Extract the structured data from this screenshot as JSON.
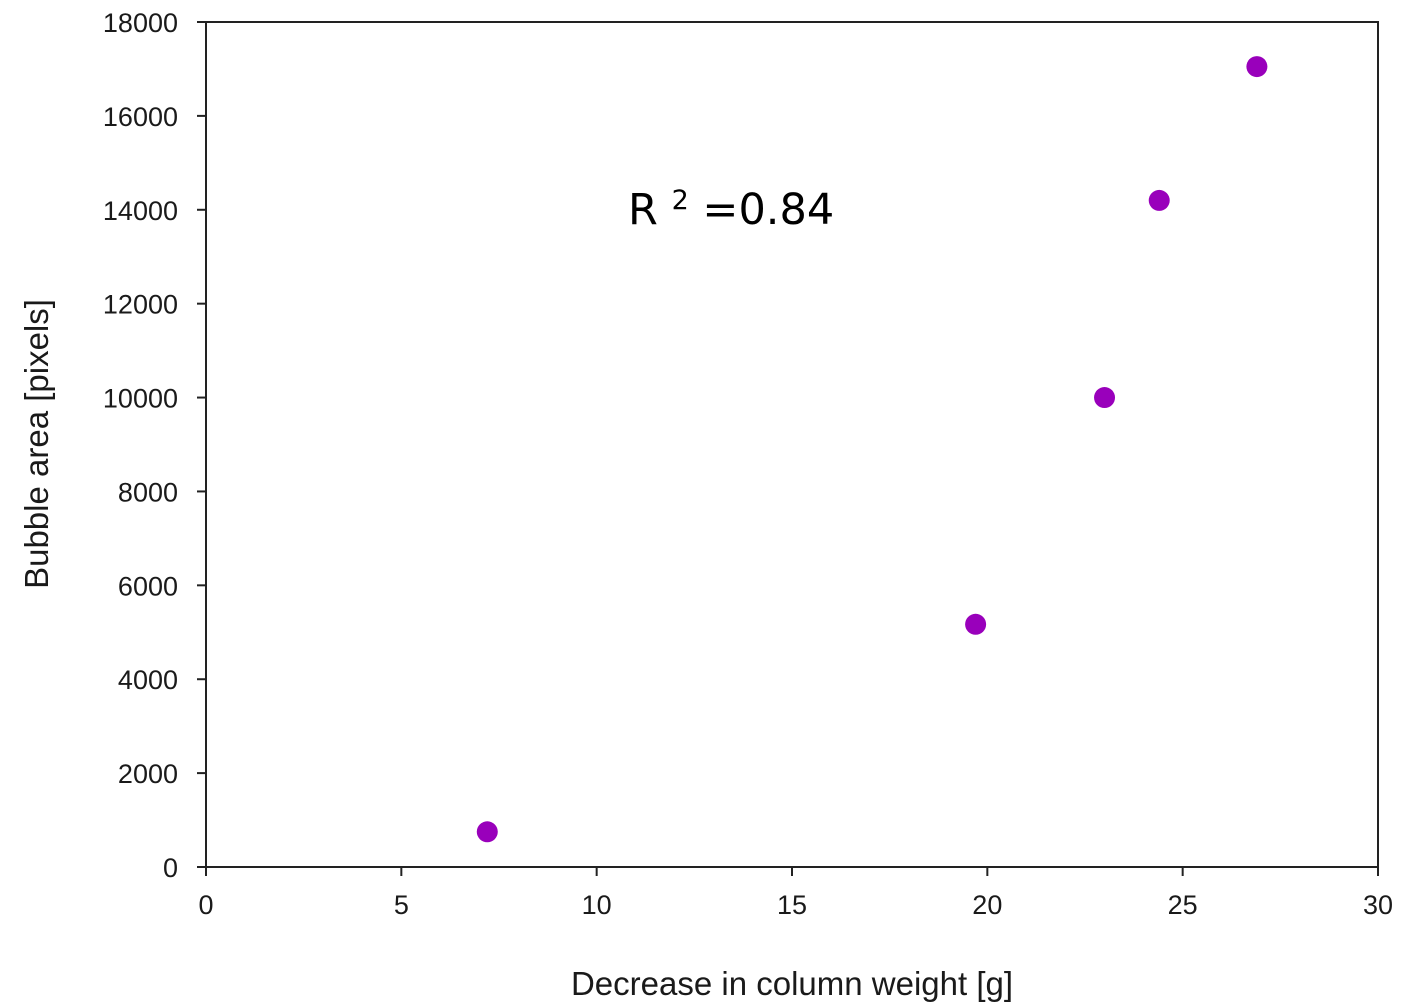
{
  "chart_data": {
    "type": "scatter",
    "title": "",
    "xlabel": "Decrease in column weight [g]",
    "ylabel": "Bubble area [pixels]",
    "xlim": [
      0,
      30
    ],
    "ylim": [
      0,
      18000
    ],
    "xticks": [
      0,
      5,
      10,
      15,
      20,
      25,
      30
    ],
    "yticks": [
      0,
      2000,
      4000,
      6000,
      8000,
      10000,
      12000,
      14000,
      16000,
      18000
    ],
    "grid": false,
    "legend": "none",
    "marker_color": "#9900bb",
    "points": [
      {
        "x": 7.2,
        "y": 750
      },
      {
        "x": 19.7,
        "y": 5170
      },
      {
        "x": 23.0,
        "y": 10000
      },
      {
        "x": 24.4,
        "y": 14200
      },
      {
        "x": 26.9,
        "y": 17050
      }
    ],
    "annotation": {
      "base": "R",
      "sup": "2",
      "rest": "=0.84"
    }
  }
}
